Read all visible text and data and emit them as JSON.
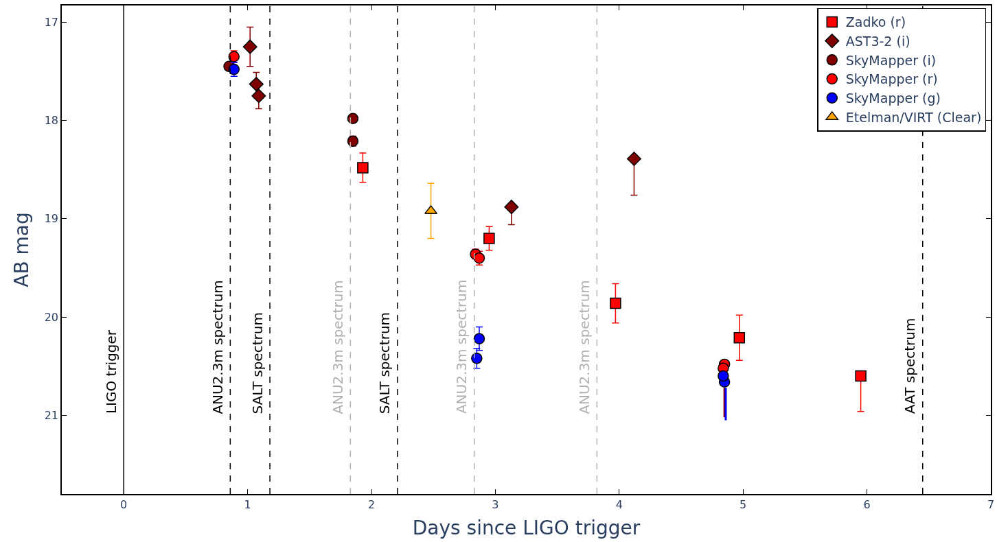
{
  "chart_data": {
    "type": "scatter",
    "xlabel": "Days since LIGO trigger",
    "ylabel": "AB mag",
    "xlim": [
      -0.5,
      7
    ],
    "xticks": [
      0,
      1,
      2,
      3,
      4,
      5,
      6,
      7
    ],
    "ylim": [
      21.8,
      16.83
    ],
    "yticks": [
      17,
      18,
      19,
      20,
      21
    ],
    "legend": "top right",
    "series": [
      {
        "name": "Zadko (r)",
        "color": "#ff0000",
        "marker": "square",
        "x": [
          1.93,
          2.95,
          3.97,
          4.97
        ],
        "values": [
          18.48,
          19.2,
          19.86,
          20.21
        ],
        "errors": [
          0.15,
          0.12,
          0.2,
          0.23
        ]
      },
      {
        "name": "AST3-2 (i)",
        "color": "#800000",
        "marker": "diamond",
        "x": [
          1.02,
          1.07,
          1.09
        ],
        "values": [
          17.25,
          17.63,
          17.75
        ],
        "errors": [
          0.2,
          0.12,
          0.13
        ]
      },
      {
        "name": "SkyMapper (i)",
        "color": "#800000",
        "marker": "circle",
        "x": [
          0.85,
          1.85,
          1.85
        ],
        "values": [
          17.45,
          17.98,
          18.21
        ],
        "errors": [
          null,
          0.04,
          0.05
        ]
      },
      {
        "name": "SkyMapper (r)",
        "color": "#ff0000",
        "marker": "circle",
        "x": [
          0.89,
          2.84,
          2.87,
          4.85,
          4.84
        ],
        "values": [
          17.35,
          19.36,
          19.4,
          20.48,
          20.52
        ],
        "errors": [
          0.06,
          0.05,
          0.07,
          null,
          null
        ]
      },
      {
        "name": "SkyMapper (g)",
        "color": "#0000ff",
        "marker": "circle",
        "x": [
          0.89,
          2.87,
          2.85,
          4.85,
          4.84
        ],
        "values": [
          17.48,
          20.22,
          20.42,
          20.66,
          20.6
        ],
        "errors": [
          0.07,
          0.12,
          0.1,
          null,
          null
        ]
      },
      {
        "name": "Etelman/VIRT (Clear)",
        "color": "#ffa500",
        "marker": "triangle",
        "x": [
          2.48
        ],
        "values": [
          18.92
        ],
        "errors": [
          0.28
        ]
      },
      {
        "color": "#ff0000",
        "marker": "square",
        "x": [
          5.95
        ],
        "values": [
          20.6
        ],
        "errors": [
          [
            20.6,
            20.96
          ]
        ]
      },
      {
        "color": "#800000",
        "marker": "diamond",
        "x": [
          3.13,
          4.12
        ],
        "values": [
          18.88,
          18.39
        ],
        "errors": [
          [
            18.88,
            19.06
          ],
          [
            18.39,
            18.76
          ]
        ]
      },
      {
        "type": "line",
        "color": "#800000",
        "marker": "none",
        "x": [
          4.85,
          4.85
        ],
        "values": [
          20.72,
          21.02
        ]
      },
      {
        "type": "line",
        "color": "#0000ff",
        "marker": "none",
        "x": [
          4.86,
          4.86
        ],
        "values": [
          20.72,
          21.05
        ]
      }
    ],
    "ref_lines": [
      {
        "axis": "x",
        "value": 0,
        "label": "LIGO trigger",
        "color": "#000000",
        "line_style": "solid"
      },
      {
        "axis": "x",
        "value": 0.86,
        "label": "ANU2.3m spectrum",
        "color": "#000000",
        "line_style": "dashed"
      },
      {
        "axis": "x",
        "value": 1.18,
        "label": "SALT spectrum",
        "color": "#000000",
        "line_style": "dashed"
      },
      {
        "axis": "x",
        "value": 1.83,
        "label": "ANU2.3m spectrum",
        "color": "#b0b0b0",
        "line_style": "dashed"
      },
      {
        "axis": "x",
        "value": 2.21,
        "label": "SALT spectrum",
        "color": "#000000",
        "line_style": "dashed"
      },
      {
        "axis": "x",
        "value": 2.83,
        "label": "ANU2.3m spectrum",
        "color": "#b0b0b0",
        "line_style": "dashed"
      },
      {
        "axis": "x",
        "value": 3.82,
        "label": "ANU2.3m spectrum",
        "color": "#b0b0b0",
        "line_style": "dashed"
      },
      {
        "axis": "x",
        "value": 6.45,
        "label": "AAT spectrum",
        "color": "#000000",
        "line_style": "dashed"
      }
    ]
  }
}
